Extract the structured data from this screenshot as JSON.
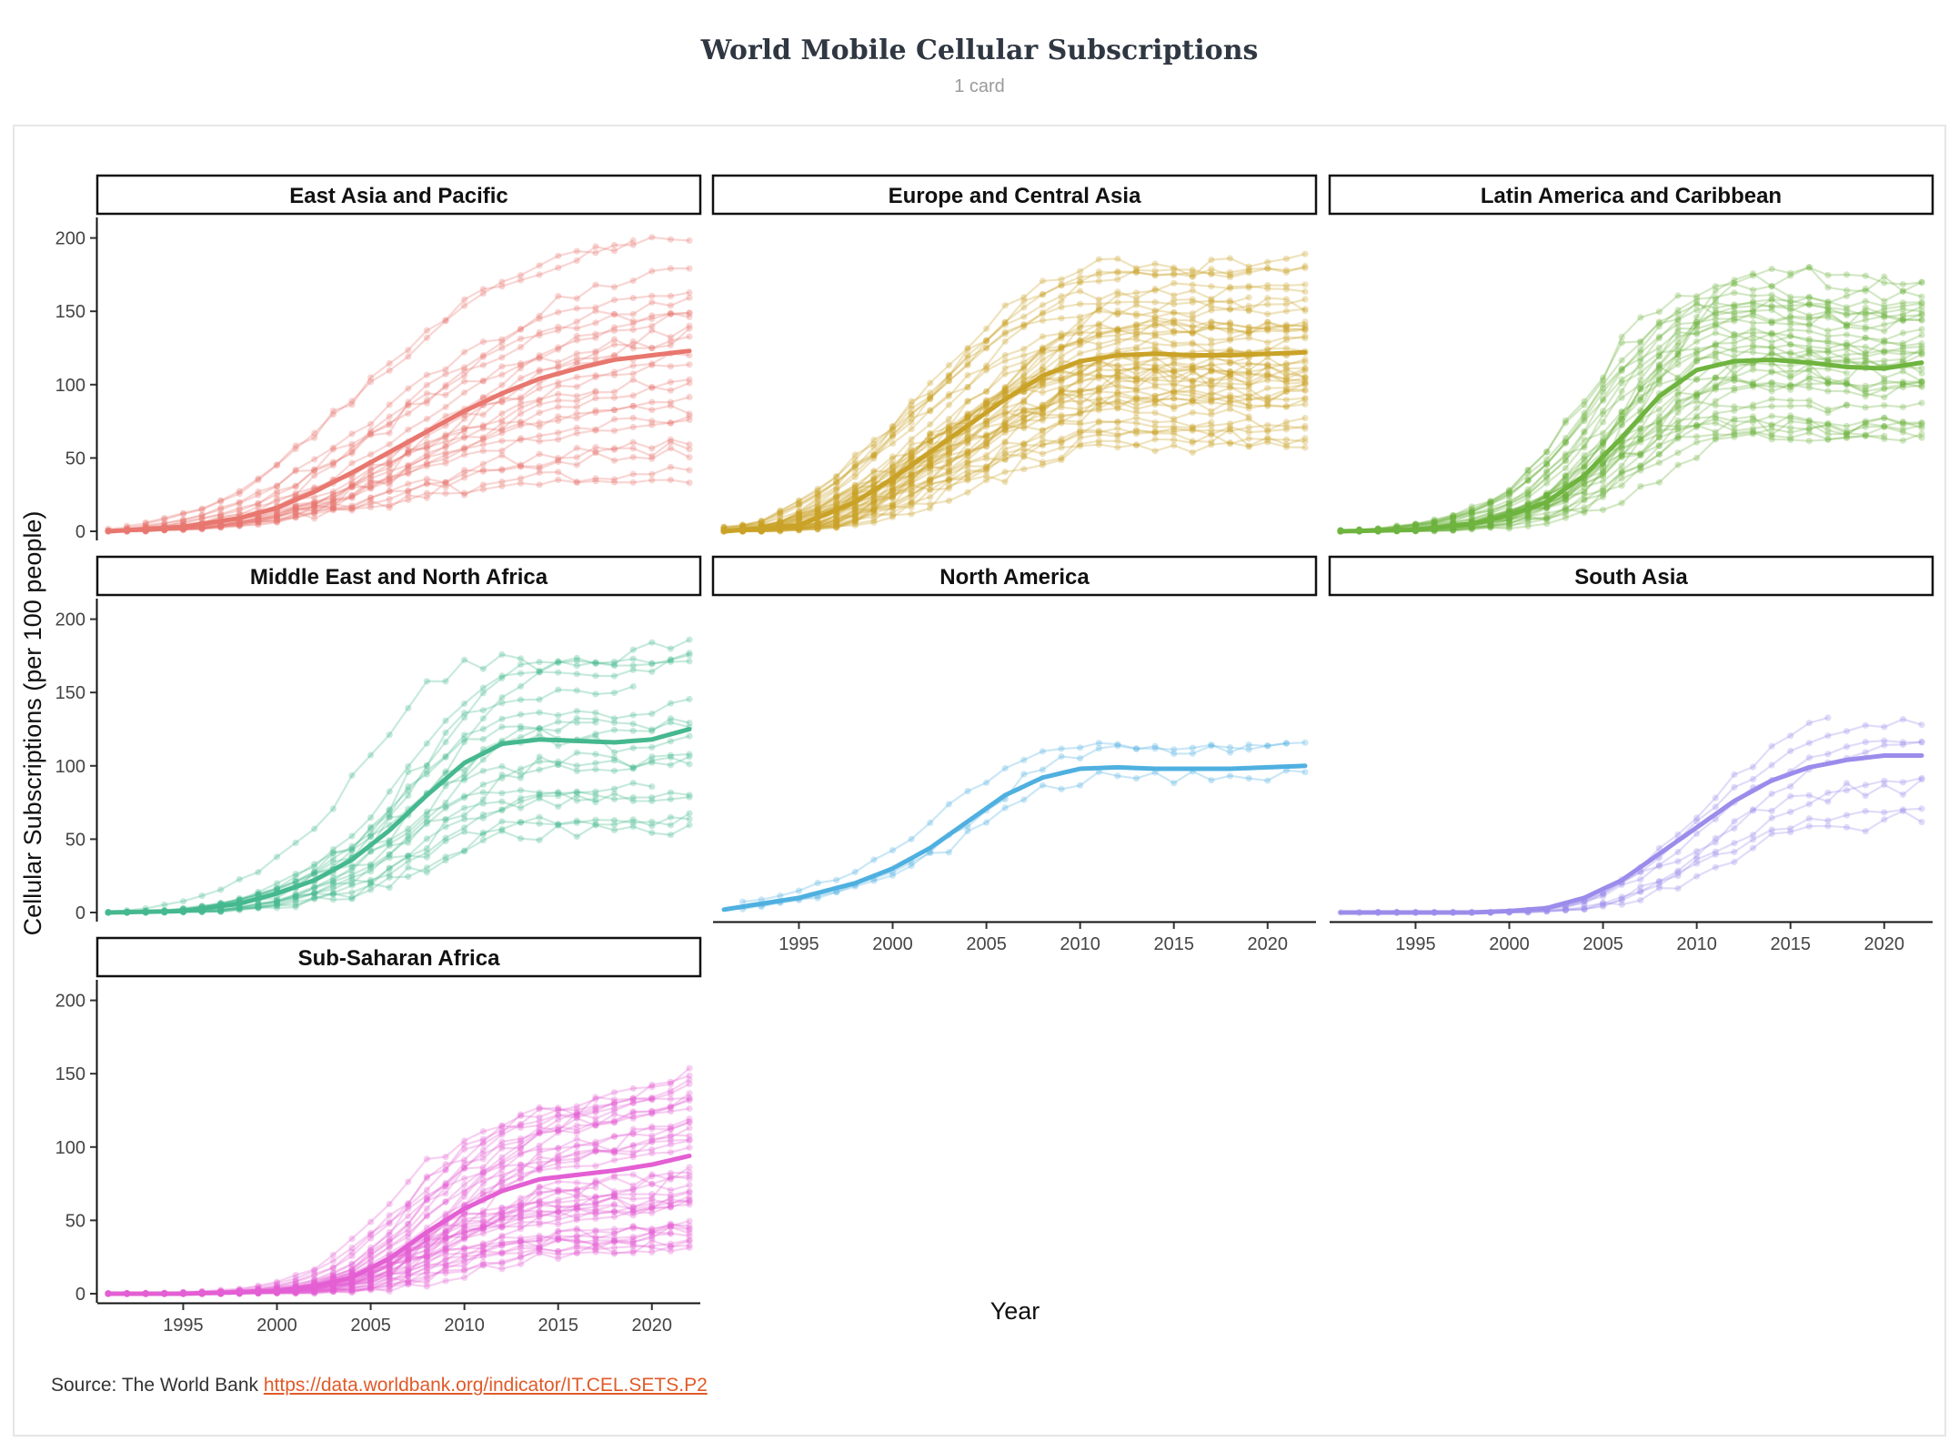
{
  "header": {
    "title": "World Mobile Cellular Subscriptions",
    "subtitle": "1 card"
  },
  "source": {
    "label": "Source:  The World Bank ",
    "link_text": "https://data.worldbank.org/indicator/IT.CEL.SETS.P2"
  },
  "chart_data": {
    "type": "line",
    "xlabel": "Year",
    "ylabel": "Cellular Subscriptions (per 100 people)",
    "xlim": [
      1991,
      2022
    ],
    "ylim": [
      0,
      210
    ],
    "xticks": [
      1995,
      2000,
      2005,
      2010,
      2015,
      2020
    ],
    "yticks": [
      0,
      50,
      100,
      150,
      200
    ],
    "facets": [
      {
        "name": "East Asia and Pacific",
        "color": "#E8776F",
        "n": 26,
        "spread": 0.55,
        "trend": [
          [
            1991,
            0
          ],
          [
            1995,
            3
          ],
          [
            1998,
            9
          ],
          [
            2000,
            16
          ],
          [
            2002,
            27
          ],
          [
            2004,
            40
          ],
          [
            2006,
            54
          ],
          [
            2008,
            68
          ],
          [
            2010,
            82
          ],
          [
            2012,
            94
          ],
          [
            2014,
            104
          ],
          [
            2016,
            111
          ],
          [
            2018,
            117
          ],
          [
            2020,
            120
          ],
          [
            2022,
            123
          ]
        ]
      },
      {
        "name": "Europe and Central Asia",
        "color": "#C9A227",
        "n": 50,
        "spread": 0.4,
        "trend": [
          [
            1991,
            0
          ],
          [
            1995,
            4
          ],
          [
            1998,
            20
          ],
          [
            2000,
            36
          ],
          [
            2002,
            54
          ],
          [
            2004,
            72
          ],
          [
            2006,
            90
          ],
          [
            2008,
            106
          ],
          [
            2010,
            116
          ],
          [
            2012,
            120
          ],
          [
            2014,
            121
          ],
          [
            2016,
            120
          ],
          [
            2018,
            120
          ],
          [
            2020,
            121
          ],
          [
            2022,
            122
          ]
        ]
      },
      {
        "name": "Latin America and Caribbean",
        "color": "#6EB43F",
        "n": 38,
        "spread": 0.45,
        "trend": [
          [
            1991,
            0
          ],
          [
            1995,
            1
          ],
          [
            1998,
            5
          ],
          [
            2000,
            11
          ],
          [
            2002,
            20
          ],
          [
            2004,
            38
          ],
          [
            2006,
            64
          ],
          [
            2008,
            92
          ],
          [
            2010,
            110
          ],
          [
            2012,
            116
          ],
          [
            2014,
            117
          ],
          [
            2016,
            115
          ],
          [
            2018,
            112
          ],
          [
            2020,
            111
          ],
          [
            2022,
            115
          ]
        ]
      },
      {
        "name": "Middle East and North Africa",
        "color": "#45B88F",
        "n": 20,
        "spread": 0.45,
        "trend": [
          [
            1991,
            0
          ],
          [
            1995,
            1
          ],
          [
            1998,
            6
          ],
          [
            2000,
            13
          ],
          [
            2002,
            22
          ],
          [
            2004,
            36
          ],
          [
            2006,
            56
          ],
          [
            2008,
            80
          ],
          [
            2010,
            102
          ],
          [
            2012,
            115
          ],
          [
            2014,
            118
          ],
          [
            2016,
            117
          ],
          [
            2018,
            116
          ],
          [
            2020,
            118
          ],
          [
            2022,
            125
          ]
        ]
      },
      {
        "name": "North America",
        "color": "#4FB0E0",
        "n": 3,
        "spread": 0.12,
        "trend": [
          [
            1991,
            2
          ],
          [
            1995,
            10
          ],
          [
            1998,
            20
          ],
          [
            2000,
            30
          ],
          [
            2002,
            44
          ],
          [
            2004,
            62
          ],
          [
            2006,
            80
          ],
          [
            2008,
            92
          ],
          [
            2010,
            98
          ],
          [
            2012,
            99
          ],
          [
            2014,
            98
          ],
          [
            2016,
            98
          ],
          [
            2018,
            98
          ],
          [
            2020,
            99
          ],
          [
            2022,
            100
          ]
        ]
      },
      {
        "name": "South Asia",
        "color": "#9B8CEB",
        "n": 8,
        "spread": 0.35,
        "trend": [
          [
            1991,
            0
          ],
          [
            1995,
            0
          ],
          [
            1998,
            0
          ],
          [
            2000,
            1
          ],
          [
            2002,
            3
          ],
          [
            2004,
            10
          ],
          [
            2006,
            22
          ],
          [
            2008,
            40
          ],
          [
            2010,
            58
          ],
          [
            2012,
            76
          ],
          [
            2014,
            90
          ],
          [
            2016,
            99
          ],
          [
            2018,
            104
          ],
          [
            2020,
            107
          ],
          [
            2022,
            107
          ]
        ]
      },
      {
        "name": "Sub-Saharan Africa",
        "color": "#E35FD3",
        "n": 46,
        "spread": 0.5,
        "trend": [
          [
            1991,
            0
          ],
          [
            1995,
            0
          ],
          [
            1998,
            1
          ],
          [
            2000,
            2
          ],
          [
            2002,
            5
          ],
          [
            2004,
            11
          ],
          [
            2006,
            24
          ],
          [
            2008,
            42
          ],
          [
            2010,
            58
          ],
          [
            2012,
            70
          ],
          [
            2014,
            78
          ],
          [
            2016,
            81
          ],
          [
            2018,
            84
          ],
          [
            2020,
            88
          ],
          [
            2022,
            94
          ]
        ]
      }
    ]
  }
}
